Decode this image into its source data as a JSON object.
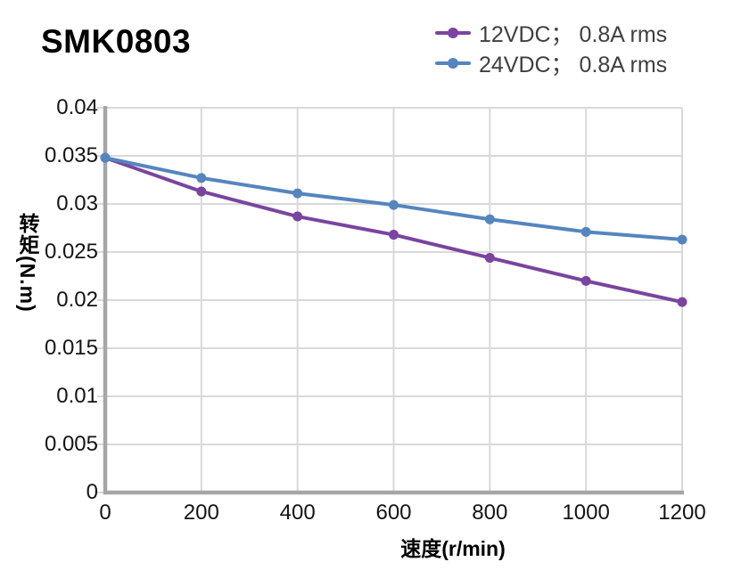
{
  "header": {
    "title": "SMK0803"
  },
  "legend": {
    "items": [
      {
        "label": "12VDC； 0.8A rms",
        "color": "#7A44A0"
      },
      {
        "label": "24VDC； 0.8A rms",
        "color": "#5585BE"
      }
    ]
  },
  "chart_data": {
    "type": "line",
    "title": "SMK0803",
    "xlabel": "速度(r/min)",
    "ylabel": "转矩(N.m)",
    "x": [
      0,
      200,
      400,
      600,
      800,
      1000,
      1200
    ],
    "series": [
      {
        "name": "12VDC； 0.8A rms",
        "color": "#7A44A0",
        "values": [
          0.0348,
          0.0313,
          0.0287,
          0.0268,
          0.0244,
          0.022,
          0.0198
        ]
      },
      {
        "name": "24VDC； 0.8A rms",
        "color": "#5585BE",
        "values": [
          0.0348,
          0.0327,
          0.0311,
          0.0299,
          0.0284,
          0.0271,
          0.0263
        ]
      }
    ],
    "xlim": [
      0,
      1200
    ],
    "ylim": [
      0,
      0.04
    ],
    "x_tick_labels": [
      "0",
      "200",
      "400",
      "600",
      "800",
      "1000",
      "1200"
    ],
    "y_tick_labels": [
      "0",
      "0.005",
      "0.01",
      "0.015",
      "0.02",
      "0.025",
      "0.03",
      "0.035",
      "0.04"
    ],
    "grid": true,
    "legend_position": "top-right",
    "grid_color": "#D9D9D9",
    "axis_color": "#A6A6A6"
  }
}
